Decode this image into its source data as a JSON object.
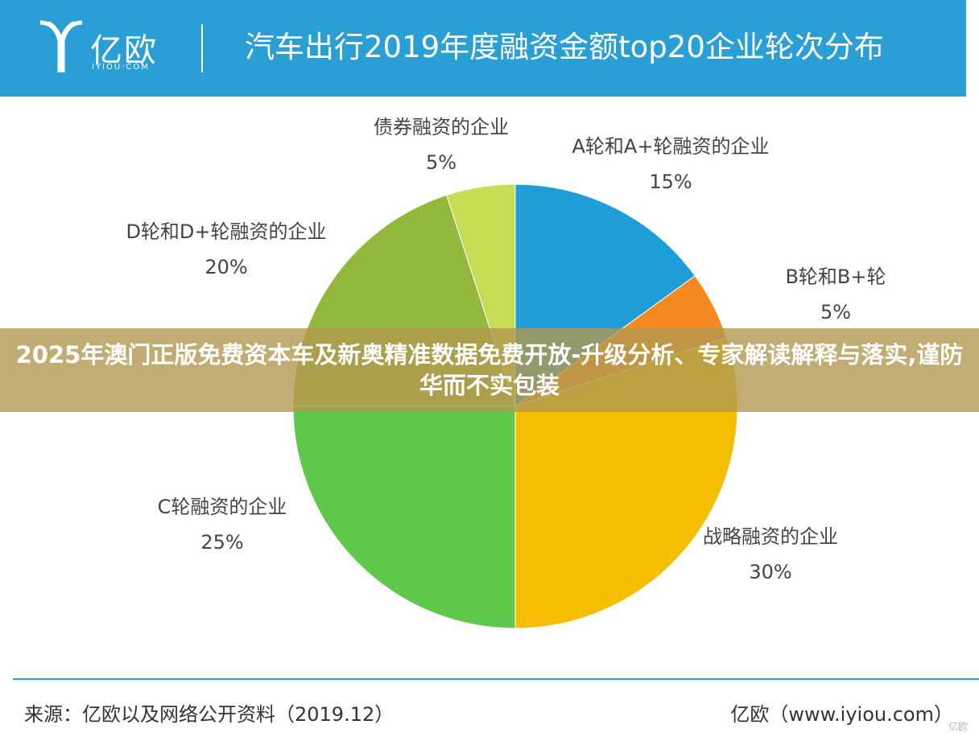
{
  "header": {
    "logo_cn": "亿欧",
    "logo_en": "IYIOU·COM",
    "title": "汽车出行2019年度融资金额top20企业轮次分布"
  },
  "chart_data": {
    "type": "pie",
    "title": "汽车出行2019年度融资金额top20企业轮次分布",
    "slices": [
      {
        "label": "A轮和A+轮融资的企业",
        "value": 15,
        "value_label": "15%",
        "color": "#1f9dd8"
      },
      {
        "label": "B轮和B+轮",
        "value": 5,
        "value_label": "5%",
        "color": "#f5891f"
      },
      {
        "label": "战略融资的企业",
        "value": 30,
        "value_label": "30%",
        "color": "#f5be00"
      },
      {
        "label": "C轮融资的企业",
        "value": 25,
        "value_label": "25%",
        "color": "#5ec84b"
      },
      {
        "label": "D轮和D+轮融资的企业",
        "value": 20,
        "value_label": "20%",
        "color": "#92b83c"
      },
      {
        "label": "债券融资的企业",
        "value": 5,
        "value_label": "5%",
        "color": "#c7dc55"
      }
    ]
  },
  "banner": {
    "text": "2025年澳门正版免费资本车及新奥精准数据免费开放-升级分析、专家解读解释与落实,谨防华而不实包装"
  },
  "footer": {
    "source": "来源：亿欧以及网络公开资料（2019.12）",
    "site": "亿欧（www.iyiou.com）",
    "watermark": "亿欧"
  }
}
